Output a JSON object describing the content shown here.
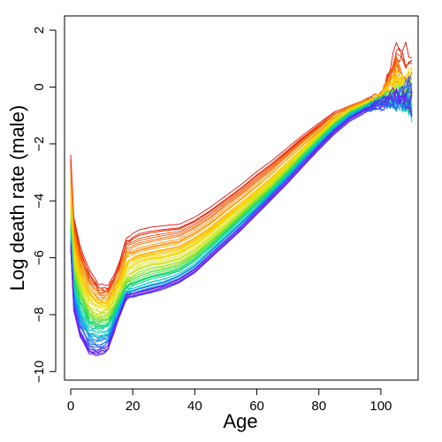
{
  "chart_data": {
    "type": "line",
    "title": "",
    "xlabel": "Age",
    "ylabel": "Log death rate (male)",
    "xlim": [
      -2,
      112
    ],
    "ylim": [
      -10.3,
      2.5
    ],
    "xticks": [
      0,
      20,
      40,
      60,
      80,
      100
    ],
    "yticks": [
      -10,
      -8,
      -6,
      -4,
      -2,
      0,
      2
    ],
    "grid": false,
    "legend": "none",
    "ages": [
      0,
      1,
      3,
      6,
      9,
      12,
      15,
      18,
      22,
      26,
      30,
      35,
      40,
      45,
      50,
      55,
      60,
      65,
      70,
      75,
      80,
      85,
      90,
      95,
      100,
      105,
      110
    ],
    "color_scale": "rainbow (red = earliest year, violet = latest year)",
    "series_count": 60,
    "series": [
      {
        "color": "#dd1111",
        "values": [
          -2.4,
          -4.6,
          -5.6,
          -6.5,
          -6.95,
          -7.05,
          -6.4,
          -5.3,
          -5.05,
          -4.95,
          -4.9,
          -4.85,
          -4.6,
          -4.25,
          -3.85,
          -3.45,
          -3.0,
          -2.6,
          -2.15,
          -1.7,
          -1.3,
          -0.9,
          -0.7,
          -0.5,
          -0.35,
          1.3,
          null
        ]
      },
      {
        "color": "#ff8800",
        "values": [
          -3.2,
          -5.2,
          -6.2,
          -7.0,
          -7.4,
          -7.4,
          -6.8,
          -5.9,
          -5.7,
          -5.6,
          -5.5,
          -5.4,
          -5.1,
          -4.75,
          -4.3,
          -3.9,
          -3.45,
          -3.0,
          -2.5,
          -2.0,
          -1.55,
          -1.05,
          -0.75,
          -0.55,
          -0.4,
          0.5,
          -0.9
        ]
      },
      {
        "color": "#ffd700",
        "values": [
          -4.0,
          -5.8,
          -6.7,
          -7.4,
          -7.7,
          -7.65,
          -7.1,
          -6.3,
          -6.1,
          -6.0,
          -5.95,
          -5.8,
          -5.5,
          -5.1,
          -4.65,
          -4.2,
          -3.75,
          -3.25,
          -2.75,
          -2.2,
          -1.7,
          -1.2,
          -0.85,
          -0.6,
          -0.45,
          0.2,
          0.3
        ]
      },
      {
        "color": "#b5e61d",
        "values": [
          -4.6,
          -6.3,
          -7.1,
          -7.9,
          -8.1,
          -8.05,
          -7.5,
          -6.8,
          -6.5,
          -6.35,
          -6.3,
          -6.15,
          -5.85,
          -5.4,
          -4.95,
          -4.45,
          -3.95,
          -3.45,
          -2.9,
          -2.35,
          -1.8,
          -1.3,
          -0.9,
          -0.65,
          -0.5,
          -0.3,
          -0.4
        ]
      },
      {
        "color": "#22dd55",
        "values": [
          -5.0,
          -6.7,
          -7.5,
          -8.2,
          -8.4,
          -8.35,
          -7.7,
          -7.0,
          -6.8,
          -6.65,
          -6.55,
          -6.4,
          -6.05,
          -5.6,
          -5.1,
          -4.6,
          -4.1,
          -3.6,
          -3.05,
          -2.45,
          -1.9,
          -1.35,
          -0.95,
          -0.7,
          -0.5,
          -0.2,
          -0.6
        ]
      },
      {
        "color": "#00cccc",
        "values": [
          -5.3,
          -7.1,
          -7.9,
          -8.6,
          -8.7,
          -8.6,
          -7.9,
          -7.2,
          -7.05,
          -6.9,
          -6.8,
          -6.6,
          -6.25,
          -5.75,
          -5.25,
          -4.75,
          -4.25,
          -3.7,
          -3.15,
          -2.55,
          -2.0,
          -1.45,
          -1.0,
          -0.75,
          -0.55,
          -0.6,
          -0.9
        ]
      },
      {
        "color": "#2266ff",
        "values": [
          -5.5,
          -7.5,
          -8.4,
          -9.0,
          -9.15,
          -9.0,
          -8.1,
          -7.35,
          -7.2,
          -7.1,
          -7.0,
          -6.75,
          -6.4,
          -5.9,
          -5.4,
          -4.9,
          -4.35,
          -3.8,
          -3.25,
          -2.65,
          -2.1,
          -1.55,
          -1.1,
          -0.8,
          -0.55,
          -0.5,
          0.2
        ]
      },
      {
        "color": "#7711ee",
        "values": [
          -5.7,
          -7.9,
          -8.8,
          -9.4,
          -9.45,
          -9.3,
          -8.3,
          -7.4,
          -7.3,
          -7.2,
          -7.05,
          -6.85,
          -6.5,
          -6.0,
          -5.5,
          -5.0,
          -4.45,
          -3.9,
          -3.35,
          -2.75,
          -2.15,
          -1.6,
          -1.15,
          -0.85,
          -0.6,
          -0.3,
          -0.8
        ]
      }
    ]
  }
}
